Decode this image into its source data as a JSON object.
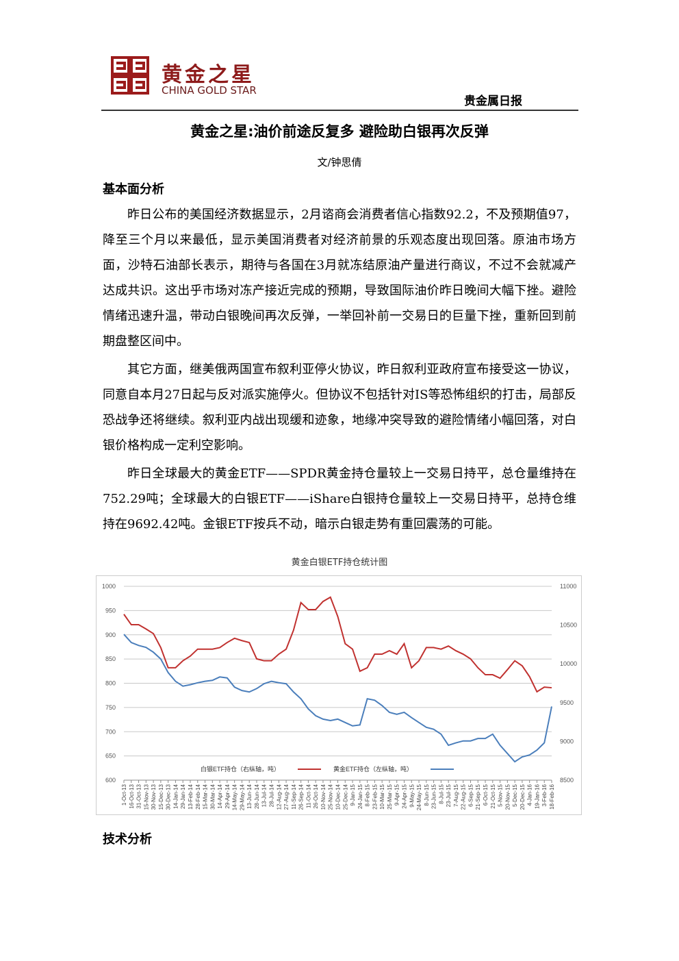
{
  "header": {
    "brand": "黄金之星",
    "brand_en": "CHINA GOLD STAR",
    "report": "贵金属日报"
  },
  "title": "黄金之星:油价前途反复多 避险助白银再次反弹",
  "author": "文/钟思倩",
  "sections": [
    {
      "heading": "基本面分析",
      "paragraphs": [
        "昨日公布的美国经济数据显示，2月谘商会消费者信心指数92.2，不及预期值97，降至三个月以来最低，显示美国消费者对经济前景的乐观态度出现回落。原油市场方面，沙特石油部长表示，期待与各国在3月就冻结原油产量进行商议，不过不会就减产达成共识。这出乎市场对冻产接近完成的预期，导致国际油价昨日晚间大幅下挫。避险情绪迅速升温，带动白银晚间再次反弹，一举回补前一交易日的巨量下挫，重新回到前期盘整区间中。",
        "其它方面，继美俄两国宣布叙利亚停火协议，昨日叙利亚政府宣布接受这一协议，同意自本月27日起与反对派实施停火。但协议不包括针对IS等恐怖组织的打击，局部反恐战争还将继续。叙利亚内战出现缓和迹象，地缘冲突导致的避险情绪小幅回落，对白银价格构成一定利空影响。",
        "昨日全球最大的黄金ETF——SPDR黄金持仓量较上一交易日持平，总仓量维持在752.29吨；全球最大的白银ETF——iShare白银持仓量较上一交易日持平，总持仓维持在9692.42吨。金银ETF按兵不动，暗示白银走势有重回震荡的可能。"
      ]
    },
    {
      "heading": "技术分析",
      "paragraphs": []
    }
  ],
  "chart_data": {
    "type": "line",
    "title": "黄金白银ETF持仓统计图",
    "categories": [
      "1-Oct-13",
      "16-Oct-13",
      "31-Oct-13",
      "15-Nov-13",
      "30-Nov-13",
      "15-Dec-13",
      "30-Dec-13",
      "14-Jan-14",
      "29-Jan-14",
      "13-Feb-14",
      "28-Feb-14",
      "15-Mar-14",
      "30-Mar-14",
      "14-Apr-14",
      "29-Apr-14",
      "14-May-14",
      "29-May-14",
      "13-Jun-14",
      "28-Jun-14",
      "13-Jul-14",
      "28-Jul-14",
      "12-Aug-14",
      "27-Aug-14",
      "11-Sep-14",
      "26-Sep-14",
      "11-Oct-14",
      "26-Oct-14",
      "10-Nov-14",
      "25-Nov-14",
      "10-Dec-14",
      "25-Dec-14",
      "9-Jan-15",
      "24-Jan-15",
      "8-Feb-15",
      "23-Feb-15",
      "10-Mar-15",
      "25-Mar-15",
      "9-Apr-15",
      "24-Apr-15",
      "9-May-15",
      "24-May-15",
      "8-Jun-15",
      "23-Jun-15",
      "8-Jul-15",
      "23-Jul-15",
      "7-Aug-15",
      "22-Aug-15",
      "6-Sep-15",
      "21-Sep-15",
      "6-Oct-15",
      "21-Oct-15",
      "5-Nov-15",
      "20-Nov-15",
      "5-Dec-15",
      "20-Dec-15",
      "4-Jan-16",
      "19-Jan-16",
      "3-Feb-16",
      "18-Feb-16"
    ],
    "series": [
      {
        "name": "白银ETF持仓（右纵轴，吨）",
        "color": "#c0312f",
        "axis": "y2",
        "values": [
          10640,
          10505,
          10505,
          10450,
          10390,
          10210,
          9950,
          9950,
          10040,
          10100,
          10190,
          10190,
          10190,
          10210,
          10275,
          10330,
          10300,
          10275,
          10065,
          10040,
          10040,
          10125,
          10190,
          10435,
          10790,
          10700,
          10700,
          10805,
          10860,
          10610,
          10260,
          10190,
          9905,
          9950,
          10125,
          10125,
          10170,
          10125,
          10260,
          9950,
          10040,
          10210,
          10210,
          10190,
          10230,
          10170,
          10125,
          10065,
          9950,
          9860,
          9860,
          9815,
          9925,
          10040,
          9975,
          9835,
          9640,
          9700,
          9692
        ]
      },
      {
        "name": "黄金ETF持仓（左纵轴，吨）",
        "color": "#4a7ebb",
        "values": [
          901,
          884,
          878,
          874,
          864,
          850,
          822,
          804,
          794,
          797,
          801,
          804,
          806,
          813,
          811,
          792,
          785,
          782,
          789,
          799,
          804,
          801,
          799,
          782,
          768,
          747,
          733,
          726,
          723,
          726,
          719,
          712,
          714,
          768,
          765,
          754,
          740,
          736,
          740,
          729,
          719,
          709,
          705,
          695,
          672,
          677,
          681,
          681,
          686,
          686,
          695,
          672,
          655,
          638,
          648,
          652,
          662,
          677,
          752
        ]
      }
    ],
    "ylim": [
      600,
      1000
    ],
    "yticks": [
      600,
      650,
      700,
      750,
      800,
      850,
      900,
      950,
      1000
    ],
    "y2lim": [
      8500,
      11000
    ],
    "y2ticks": [
      8500,
      9000,
      9500,
      10000,
      10500,
      11000
    ],
    "grid": true
  }
}
